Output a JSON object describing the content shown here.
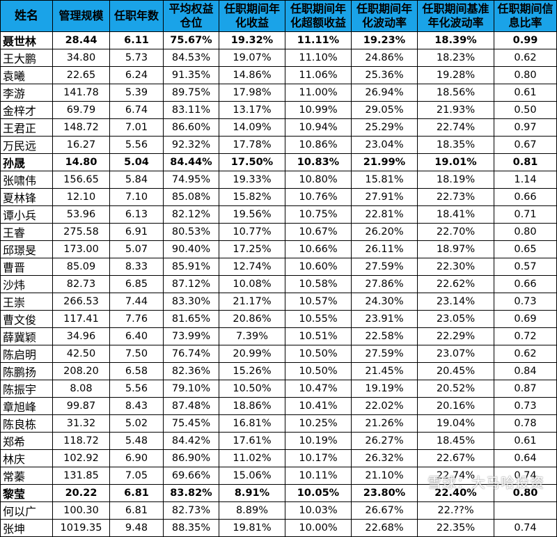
{
  "columns": [
    "姓名",
    "管理规模",
    "任职年数",
    "平均权益仓位",
    "任职期间年化收益",
    "任职期间年化超额收益",
    "任职期间年化波动率",
    "任职期间基准年化波动率",
    "任职期间信息比率"
  ],
  "rows": [
    {
      "name": "聂世林",
      "bold": true,
      "cells": [
        "28.44",
        "6.11",
        "75.67%",
        "19.32%",
        "11.11%",
        "19.23%",
        "18.39%",
        "0.99"
      ]
    },
    {
      "name": "王大鹏",
      "cells": [
        "34.80",
        "5.73",
        "84.53%",
        "19.07%",
        "11.10%",
        "24.86%",
        "18.23%",
        "0.62"
      ]
    },
    {
      "name": "袁曦",
      "cells": [
        "22.65",
        "6.24",
        "91.35%",
        "14.86%",
        "11.06%",
        "25.36%",
        "19.28%",
        "0.80"
      ]
    },
    {
      "name": "李游",
      "cells": [
        "141.78",
        "5.39",
        "89.75%",
        "17.98%",
        "11.00%",
        "26.94%",
        "18.56%",
        "0.61"
      ]
    },
    {
      "name": "金梓才",
      "cells": [
        "69.79",
        "6.74",
        "83.11%",
        "13.17%",
        "10.99%",
        "29.05%",
        "21.93%",
        "0.50"
      ]
    },
    {
      "name": "王君正",
      "cells": [
        "148.72",
        "7.01",
        "86.60%",
        "14.09%",
        "10.94%",
        "25.29%",
        "22.74%",
        "0.97"
      ]
    },
    {
      "name": "万民远",
      "cells": [
        "16.27",
        "5.56",
        "92.32%",
        "17.78%",
        "10.86%",
        "23.04%",
        "18.35%",
        "0.67"
      ]
    },
    {
      "name": "孙晟",
      "bold": true,
      "cells": [
        "14.80",
        "5.04",
        "84.44%",
        "17.50%",
        "10.83%",
        "21.99%",
        "19.01%",
        "0.81"
      ]
    },
    {
      "name": "张啸伟",
      "cells": [
        "156.65",
        "5.84",
        "74.95%",
        "19.33%",
        "10.80%",
        "15.81%",
        "18.19%",
        "1.14"
      ]
    },
    {
      "name": "夏林锋",
      "cells": [
        "12.10",
        "7.10",
        "85.08%",
        "15.82%",
        "10.76%",
        "27.91%",
        "22.73%",
        "0.66"
      ]
    },
    {
      "name": "谭小兵",
      "cells": [
        "53.96",
        "6.13",
        "82.12%",
        "19.56%",
        "10.75%",
        "22.81%",
        "18.41%",
        "0.71"
      ]
    },
    {
      "name": "王睿",
      "cells": [
        "275.58",
        "6.91",
        "80.53%",
        "10.77%",
        "10.67%",
        "26.20%",
        "22.70%",
        "0.80"
      ]
    },
    {
      "name": "邱璟旻",
      "cells": [
        "173.00",
        "5.07",
        "90.40%",
        "17.25%",
        "10.66%",
        "26.11%",
        "18.97%",
        "0.65"
      ]
    },
    {
      "name": "曹晋",
      "cells": [
        "85.09",
        "8.33",
        "85.91%",
        "12.74%",
        "10.60%",
        "27.59%",
        "22.30%",
        "0.57"
      ]
    },
    {
      "name": "沙炜",
      "cells": [
        "82.73",
        "6.85",
        "87.12%",
        "10.08%",
        "10.58%",
        "27.86%",
        "22.62%",
        "0.66"
      ]
    },
    {
      "name": "王崇",
      "cells": [
        "266.53",
        "7.44",
        "83.30%",
        "21.17%",
        "10.57%",
        "24.30%",
        "23.14%",
        "0.73"
      ]
    },
    {
      "name": "曹文俊",
      "cells": [
        "117.41",
        "7.76",
        "81.65%",
        "20.86%",
        "10.55%",
        "23.91%",
        "23.05%",
        "0.69"
      ]
    },
    {
      "name": "薛冀颖",
      "cells": [
        "34.96",
        "6.40",
        "73.99%",
        "7.39%",
        "10.51%",
        "22.58%",
        "22.29%",
        "0.72"
      ]
    },
    {
      "name": "陈启明",
      "cells": [
        "42.50",
        "7.50",
        "76.74%",
        "20.99%",
        "10.50%",
        "27.59%",
        "23.07%",
        "0.62"
      ]
    },
    {
      "name": "陈鹏扬",
      "cells": [
        "208.20",
        "6.58",
        "82.36%",
        "15.26%",
        "10.50%",
        "21.45%",
        "20.45%",
        "0.84"
      ]
    },
    {
      "name": "陈振宇",
      "cells": [
        "8.08",
        "5.56",
        "79.10%",
        "10.50%",
        "10.47%",
        "19.19%",
        "20.52%",
        "0.87"
      ]
    },
    {
      "name": "章旭峰",
      "cells": [
        "99.87",
        "8.43",
        "87.48%",
        "18.86%",
        "10.41%",
        "22.02%",
        "20.16%",
        "0.73"
      ]
    },
    {
      "name": "陈良栋",
      "cells": [
        "31.32",
        "5.02",
        "75.45%",
        "16.81%",
        "10.25%",
        "21.26%",
        "19.04%",
        "0.78"
      ]
    },
    {
      "name": "郑希",
      "cells": [
        "118.72",
        "5.48",
        "84.42%",
        "17.61%",
        "10.19%",
        "26.27%",
        "18.45%",
        "0.61"
      ]
    },
    {
      "name": "林庆",
      "cells": [
        "102.92",
        "6.90",
        "86.90%",
        "11.02%",
        "10.17%",
        "26.32%",
        "22.67%",
        "0.64"
      ]
    },
    {
      "name": "常蓁",
      "cells": [
        "131.85",
        "7.05",
        "69.66%",
        "15.06%",
        "10.11%",
        "21.10%",
        "22.74%",
        "0.74"
      ]
    },
    {
      "name": "黎莹",
      "bold": true,
      "cells": [
        "20.22",
        "6.81",
        "83.82%",
        "8.91%",
        "10.05%",
        "23.80%",
        "22.40%",
        "0.80"
      ]
    },
    {
      "name": "何以广",
      "cells": [
        "100.30",
        "6.81",
        "82.73%",
        "8.89%",
        "10.03%",
        "26.67%",
        "22.??%",
        ""
      ]
    },
    {
      "name": "张坤",
      "cells": [
        "1019.35",
        "9.48",
        "88.35%",
        "19.81%",
        "10.00%",
        "22.68%",
        "22.35%",
        "0.74"
      ]
    }
  ],
  "watermark": "雪球：大马哈投资"
}
